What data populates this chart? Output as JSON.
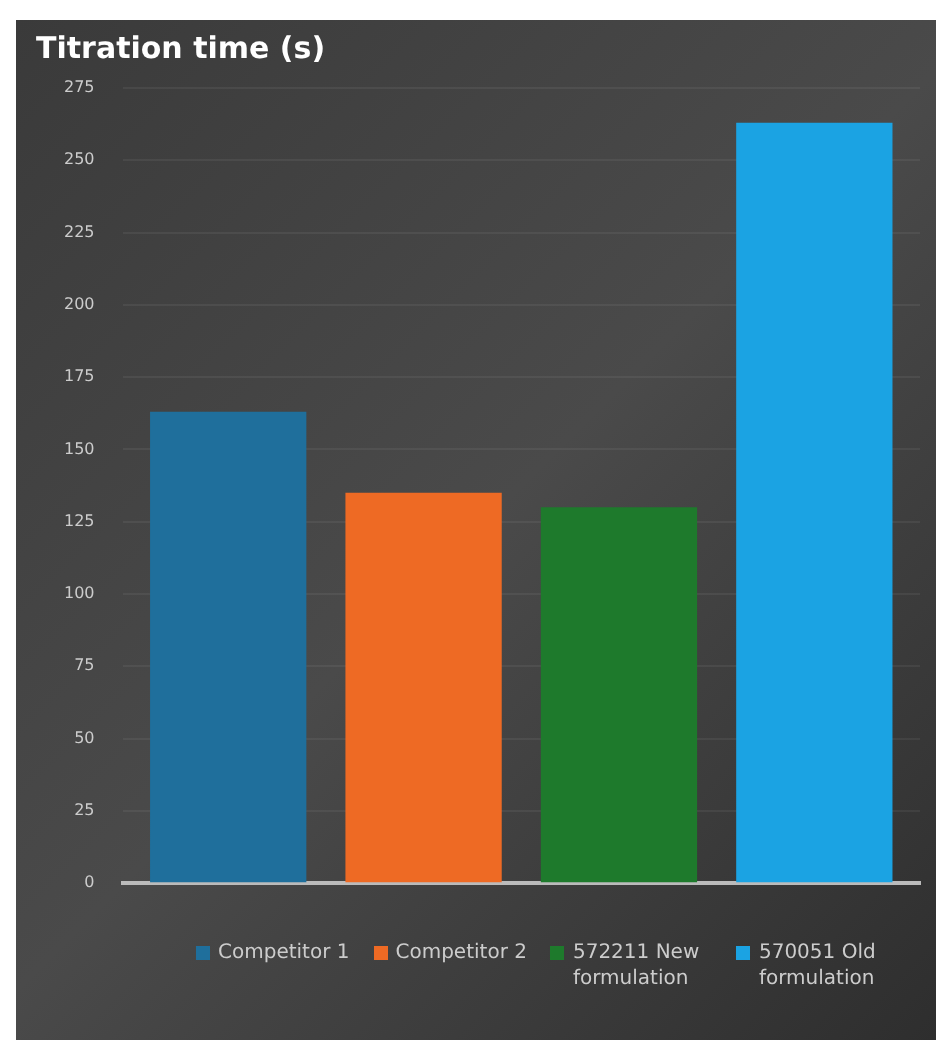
{
  "chart_data": {
    "type": "bar",
    "title": "Titration time (s)",
    "categories": [
      null
    ],
    "series": [
      {
        "name": "Competitor 1",
        "color": "#1f6f9c",
        "values": [
          163
        ]
      },
      {
        "name": "Competitor 2",
        "color": "#ee6a24",
        "values": [
          135
        ]
      },
      {
        "name": "572211 New formulation",
        "color": "#1e7a2c",
        "values": [
          130
        ]
      },
      {
        "name": "570051 Old formulation",
        "color": "#1ba3e3",
        "values": [
          263
        ]
      }
    ],
    "ylim": [
      0,
      275
    ],
    "yticks": [
      0,
      25,
      50,
      75,
      100,
      125,
      150,
      175,
      200,
      225,
      250,
      275
    ],
    "grid": "y",
    "legend": "bottom"
  }
}
